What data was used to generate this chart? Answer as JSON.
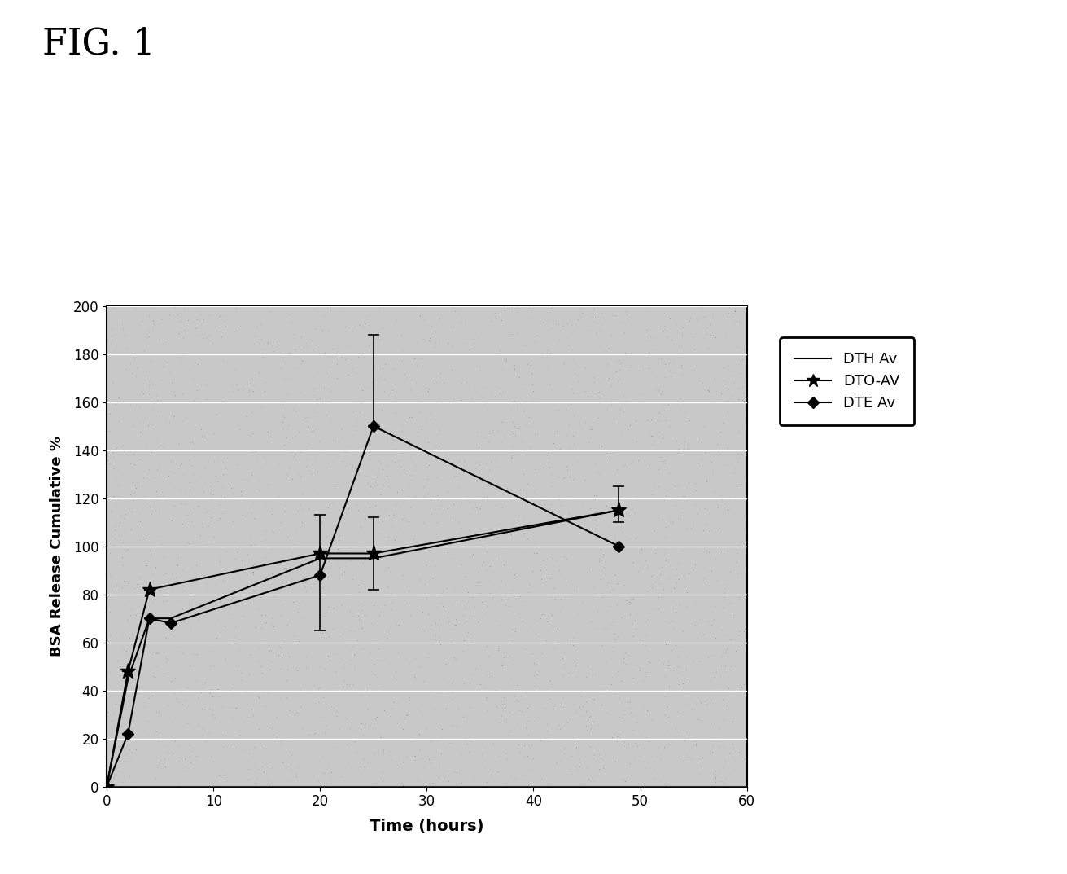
{
  "title": "FIG. 1",
  "xlabel": "Time (hours)",
  "ylabel": "BSA Release Cumulative %",
  "xlim": [
    0,
    60
  ],
  "ylim": [
    0,
    200
  ],
  "xticks": [
    0,
    10,
    20,
    30,
    40,
    50,
    60
  ],
  "yticks": [
    0,
    20,
    40,
    60,
    80,
    100,
    120,
    140,
    160,
    180,
    200
  ],
  "DTH_x": [
    0,
    2,
    4,
    6,
    20,
    25,
    48
  ],
  "DTH_y": [
    0,
    45,
    70,
    70,
    95,
    95,
    115
  ],
  "DTO_x": [
    0,
    2,
    4,
    20,
    25,
    48
  ],
  "DTO_y": [
    0,
    48,
    82,
    97,
    97,
    115
  ],
  "DTO_yerr_low": [
    0,
    0,
    0,
    0,
    15,
    5
  ],
  "DTO_yerr_high": [
    0,
    0,
    0,
    0,
    15,
    10
  ],
  "DTE_x": [
    0,
    2,
    4,
    6,
    20,
    25,
    48
  ],
  "DTE_y": [
    0,
    22,
    70,
    68,
    88,
    150,
    100
  ],
  "DTE_yerr_low": [
    0,
    0,
    0,
    0,
    23,
    0,
    0
  ],
  "DTE_yerr_high": [
    0,
    0,
    0,
    0,
    25,
    38,
    0
  ],
  "background_color": "#c8c8c8",
  "line_color": "#000000",
  "grid_color": "#ffffff",
  "fig_bg": "#ffffff"
}
